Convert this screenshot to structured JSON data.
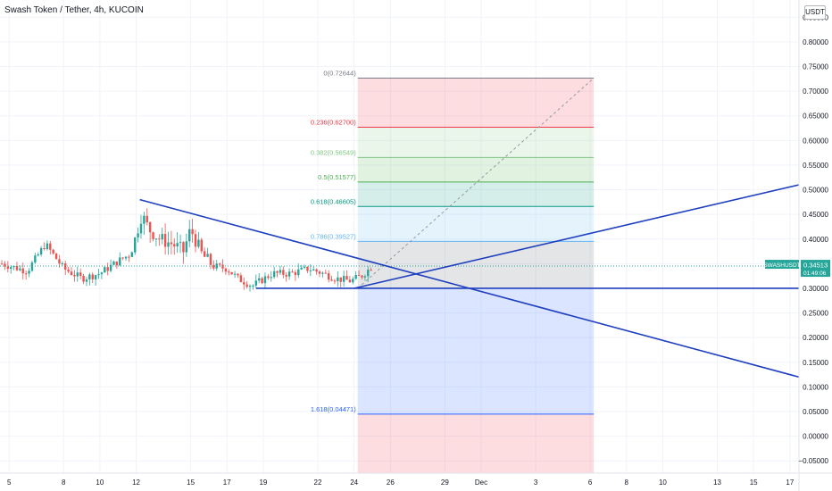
{
  "header": {
    "symbol_title": "Swash Token / Tether, 4h, KUCOIN",
    "currency_unit": "USDT"
  },
  "price_tag": {
    "symbol": "SWASHUSDT",
    "price": "0.34513",
    "countdown": "01:49:06",
    "color": "#26a69a"
  },
  "chart_data": {
    "type": "candlestick",
    "y_ticks": [
      "0.85000",
      "0.80000",
      "0.75000",
      "0.70000",
      "0.65000",
      "0.60000",
      "0.55000",
      "0.50000",
      "0.45000",
      "0.40000",
      "0.35000",
      "0.30000",
      "0.25000",
      "0.20000",
      "0.15000",
      "0.10000",
      "0.05000",
      "0.00000",
      "−0.05000"
    ],
    "y_tick_values": [
      0.85,
      0.8,
      0.75,
      0.7,
      0.65,
      0.6,
      0.55,
      0.5,
      0.45,
      0.4,
      0.35,
      0.3,
      0.25,
      0.2,
      0.15,
      0.1,
      0.05,
      0.0,
      -0.05
    ],
    "ylim": [
      -0.075,
      0.885
    ],
    "x_ticks": [
      {
        "label": "5",
        "day": 5
      },
      {
        "label": "8",
        "day": 8
      },
      {
        "label": "10",
        "day": 10
      },
      {
        "label": "12",
        "day": 12
      },
      {
        "label": "15",
        "day": 15
      },
      {
        "label": "17",
        "day": 17
      },
      {
        "label": "19",
        "day": 19
      },
      {
        "label": "22",
        "day": 22
      },
      {
        "label": "24",
        "day": 24
      },
      {
        "label": "26",
        "day": 26
      },
      {
        "label": "29",
        "day": 29
      },
      {
        "label": "Dec",
        "day": 31
      },
      {
        "label": "3",
        "day": 34
      },
      {
        "label": "6",
        "day": 37
      },
      {
        "label": "8",
        "day": 39
      },
      {
        "label": "10",
        "day": 41
      },
      {
        "label": "13",
        "day": 44
      },
      {
        "label": "15",
        "day": 46
      },
      {
        "label": "17",
        "day": 48
      }
    ],
    "xlim": [
      4.5,
      48.5
    ],
    "candle_key_prices": [
      {
        "day": 4.6,
        "price": 0.35
      },
      {
        "day": 6.0,
        "price": 0.335
      },
      {
        "day": 7.0,
        "price": 0.39
      },
      {
        "day": 8.0,
        "price": 0.34
      },
      {
        "day": 9.0,
        "price": 0.32
      },
      {
        "day": 10.0,
        "price": 0.33
      },
      {
        "day": 11.0,
        "price": 0.355
      },
      {
        "day": 11.7,
        "price": 0.37
      },
      {
        "day": 12.3,
        "price": 0.45
      },
      {
        "day": 12.7,
        "price": 0.42
      },
      {
        "day": 13.3,
        "price": 0.4
      },
      {
        "day": 14.0,
        "price": 0.39
      },
      {
        "day": 14.6,
        "price": 0.375
      },
      {
        "day": 15.0,
        "price": 0.42
      },
      {
        "day": 15.6,
        "price": 0.37
      },
      {
        "day": 16.2,
        "price": 0.345
      },
      {
        "day": 17.0,
        "price": 0.34
      },
      {
        "day": 17.6,
        "price": 0.32
      },
      {
        "day": 18.4,
        "price": 0.305
      },
      {
        "day": 19.5,
        "price": 0.33
      },
      {
        "day": 20.5,
        "price": 0.33
      },
      {
        "day": 21.5,
        "price": 0.34
      },
      {
        "day": 22.3,
        "price": 0.33
      },
      {
        "day": 23.0,
        "price": 0.32
      },
      {
        "day": 23.8,
        "price": 0.315
      },
      {
        "day": 24.4,
        "price": 0.325
      },
      {
        "day": 25.0,
        "price": 0.345
      }
    ],
    "fibonacci": {
      "levels": [
        {
          "ratio": "0",
          "label": "0(0.72644)",
          "price": 0.72644,
          "color": "#787b86"
        },
        {
          "ratio": "0.236",
          "label": "0.236(0.62700)",
          "price": 0.627,
          "color": "#f23645"
        },
        {
          "ratio": "0.382",
          "label": "0.382(0.56549)",
          "price": 0.56549,
          "color": "#81c784"
        },
        {
          "ratio": "0.5",
          "label": "0.5(0.51577)",
          "price": 0.51577,
          "color": "#4caf50"
        },
        {
          "ratio": "0.618",
          "label": "0.618(0.46605)",
          "price": 0.46605,
          "color": "#089981"
        },
        {
          "ratio": "0.786",
          "label": "0.786(0.39527)",
          "price": 0.39527,
          "color": "#64b5f6"
        },
        {
          "ratio": "1",
          "label": "",
          "price": 0.3,
          "color": "#787b86"
        },
        {
          "ratio": "1.618",
          "label": "1.618(0.04471)",
          "price": 0.04471,
          "color": "#2962ff"
        },
        {
          "ratio": "2.618",
          "label": "",
          "price": -0.075,
          "color": "#f23645"
        }
      ],
      "x_start_day": 24.2,
      "x_end_day": 37.2
    },
    "trendlines": [
      {
        "name": "descending-resistance",
        "from": {
          "day": 12.2,
          "price": 0.48
        },
        "to": {
          "day": 48.5,
          "price": 0.12
        }
      },
      {
        "name": "ascending-line",
        "from": {
          "day": 24.0,
          "price": 0.3
        },
        "to": {
          "day": 48.5,
          "price": 0.51
        }
      },
      {
        "name": "horizontal-support",
        "from": {
          "day": 18.6,
          "price": 0.3
        },
        "to": {
          "day": 48.5,
          "price": 0.3
        }
      }
    ],
    "current_price": 0.34513
  }
}
